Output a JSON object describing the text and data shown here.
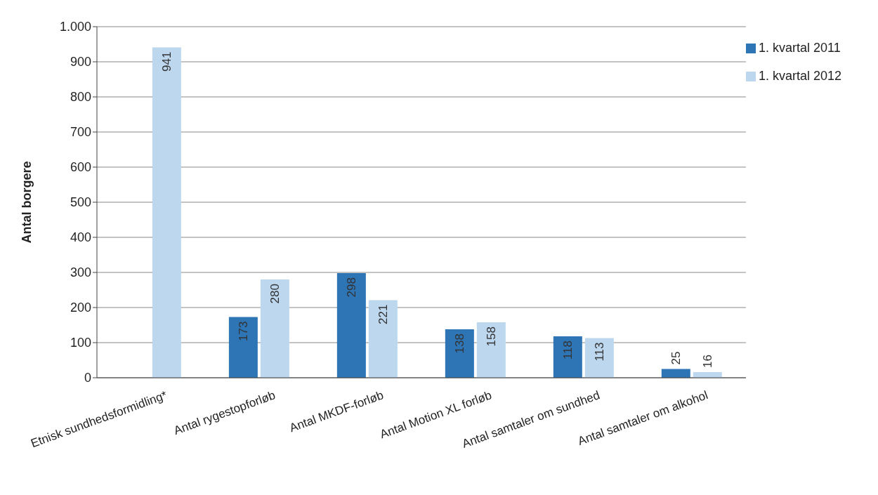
{
  "chart_data": {
    "type": "bar",
    "ylabel": "Antal borgere",
    "categories": [
      "Etnisk sundhedsformidling*",
      "Antal rygestopforløb",
      "Antal MKDF-forløb",
      "Antal Motion XL forløb",
      "Antal samtaler om sundhed",
      "Antal samtaler om alkohol"
    ],
    "series": [
      {
        "name": "1. kvartal 2011",
        "color": "#2e75b6",
        "values": [
          null,
          173,
          298,
          138,
          118,
          25
        ]
      },
      {
        "name": "1. kvartal 2012",
        "color": "#bdd7ee",
        "values": [
          941,
          280,
          221,
          158,
          113,
          16
        ]
      }
    ],
    "ylim": [
      0,
      1000
    ],
    "yticks": [
      0,
      100,
      200,
      300,
      400,
      500,
      600,
      700,
      800,
      900,
      {
        "value": 1000,
        "label": "1.000"
      }
    ],
    "grid": "y",
    "legend": "top right",
    "data_labels": true
  }
}
